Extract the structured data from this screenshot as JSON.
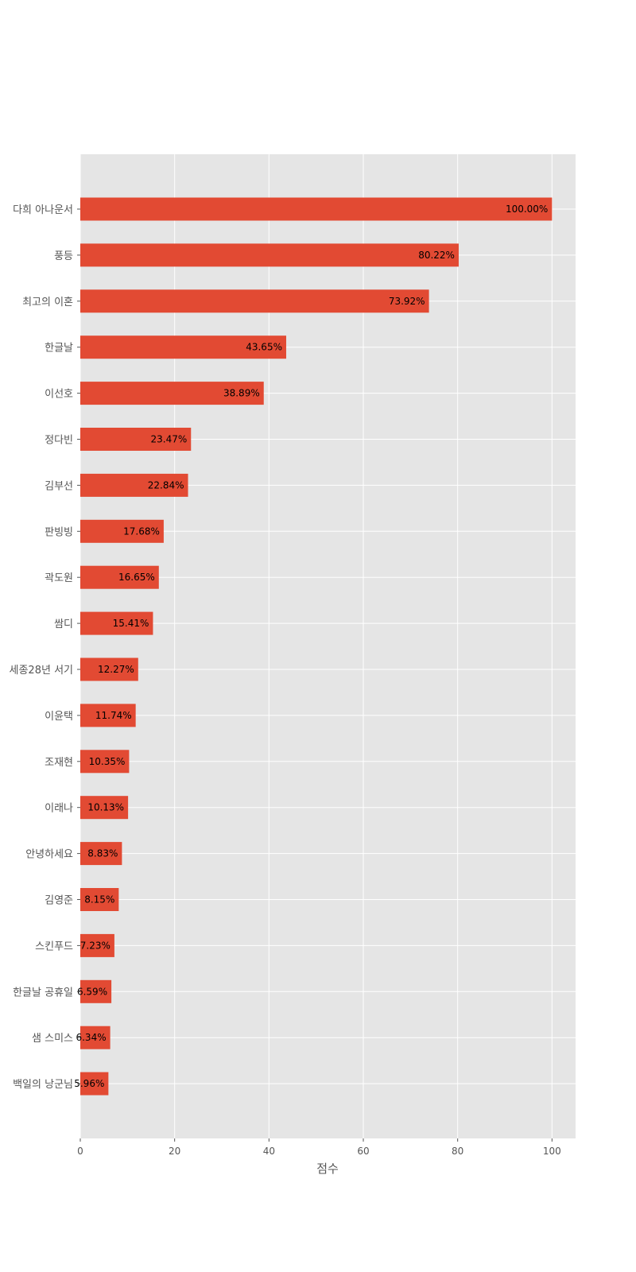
{
  "chart_data": {
    "type": "bar",
    "orientation": "horizontal",
    "categories": [
      "다희 아나운서",
      "풍등",
      "최고의 이혼",
      "한글날",
      "이선호",
      "정다빈",
      "김부선",
      "판빙빙",
      "곽도원",
      "쌈디",
      "세종28년 서기",
      "이윤택",
      "조재현",
      "이래나",
      "안녕하세요",
      "김영준",
      "스킨푸드",
      "한글날 공휴일",
      "샘 스미스",
      "백일의 낭군님"
    ],
    "values": [
      100.0,
      80.22,
      73.92,
      43.65,
      38.89,
      23.47,
      22.84,
      17.68,
      16.65,
      15.41,
      12.27,
      11.74,
      10.35,
      10.13,
      8.83,
      8.15,
      7.23,
      6.59,
      6.34,
      5.96
    ],
    "value_labels": [
      "100.00%",
      "80.22%",
      "73.92%",
      "43.65%",
      "38.89%",
      "23.47%",
      "22.84%",
      "17.68%",
      "16.65%",
      "15.41%",
      "12.27%",
      "11.74%",
      "10.35%",
      "10.13%",
      "8.83%",
      "8.15%",
      "7.23%",
      "6.59%",
      "6.34%",
      "5.96%"
    ],
    "xlabel": "점수",
    "ylabel": "",
    "xlim": [
      0,
      105
    ],
    "xticks": [
      0,
      20,
      40,
      60,
      80,
      100
    ],
    "grid": true,
    "colors": {
      "bar": "#E24A33",
      "plot_background": "#E5E5E5",
      "grid": "#FFFFFF"
    }
  }
}
